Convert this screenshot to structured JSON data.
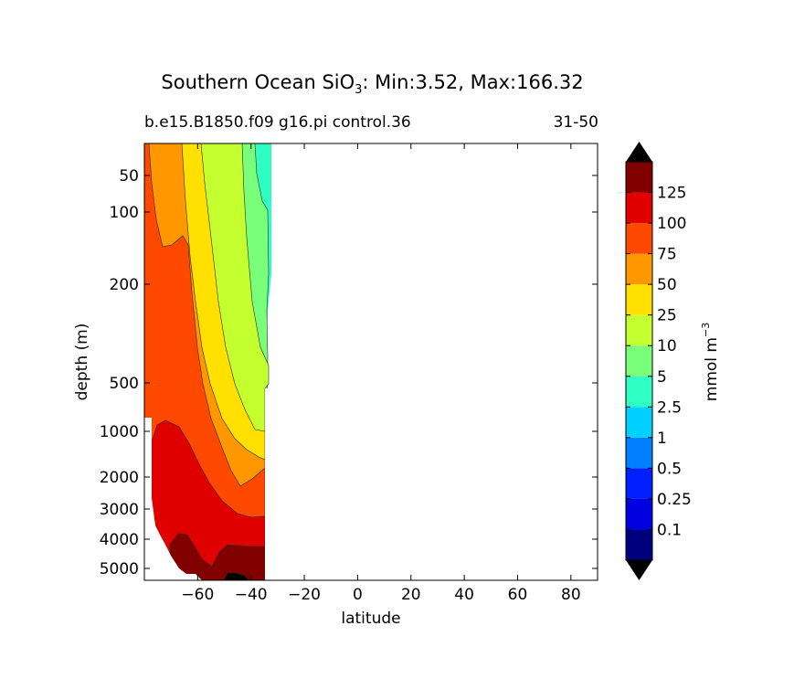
{
  "title_main": "Southern Ocean SiO",
  "title_sub": "3",
  "title_stats": ": Min:3.52, Max:166.32",
  "subtitle_left": "b.e15.B1850.f09 g16.pi control.36",
  "subtitle_right": "31-50",
  "chart_data": {
    "type": "contour",
    "xlabel": "latitude",
    "ylabel": "depth (m)",
    "xlim": [
      -80,
      90
    ],
    "ylim": [
      5500,
      0
    ],
    "x_ticks": [
      -60,
      -40,
      -20,
      0,
      20,
      40,
      60,
      80
    ],
    "x_tick_labels": [
      "−60",
      "−40",
      "−20",
      "0",
      "20",
      "40",
      "60",
      "80"
    ],
    "y_ticks": [
      50,
      100,
      200,
      500,
      1000,
      2000,
      3000,
      4000,
      5000
    ],
    "y_tick_labels": [
      "50",
      "100",
      "200",
      "500",
      "1000",
      "2000",
      "3000",
      "4000",
      "5000"
    ],
    "data_extent_lat": [
      -80,
      -34
    ],
    "min": 3.52,
    "max": 166.32,
    "colorbar": {
      "label": "mmol m",
      "label_exp": "−3",
      "levels": [
        0.1,
        0.25,
        0.5,
        1,
        2.5,
        5,
        10,
        25,
        50,
        75,
        100,
        125
      ],
      "level_labels": [
        "0.1",
        "0.25",
        "0.5",
        "1",
        "2.5",
        "5",
        "10",
        "25",
        "50",
        "75",
        "100",
        "125"
      ],
      "colors": [
        "#00007f",
        "#0000e0",
        "#0020ff",
        "#007fff",
        "#00d0ff",
        "#30ffc4",
        "#7aff7a",
        "#c4ff30",
        "#ffe000",
        "#ff9800",
        "#ff4800",
        "#e00000",
        "#800000"
      ],
      "under_color": "#000000",
      "over_color": "#000000"
    },
    "bands": [
      {
        "level_min": 2.5,
        "level_max": 5,
        "color": "#30ffc4"
      },
      {
        "level_min": 5,
        "level_max": 10,
        "color": "#7aff7a"
      },
      {
        "level_min": 10,
        "level_max": 25,
        "color": "#c4ff30"
      },
      {
        "level_min": 25,
        "level_max": 50,
        "color": "#ffe000"
      },
      {
        "level_min": 50,
        "level_max": 75,
        "color": "#ff9800"
      },
      {
        "level_min": 75,
        "level_max": 100,
        "color": "#ff4800"
      },
      {
        "level_min": 100,
        "level_max": 125,
        "color": "#e00000"
      },
      {
        "level_min": 125,
        "level_max": 150,
        "color": "#800000"
      },
      {
        "level_min": 150,
        "level_max": 166.32,
        "color": "#000000"
      }
    ]
  }
}
